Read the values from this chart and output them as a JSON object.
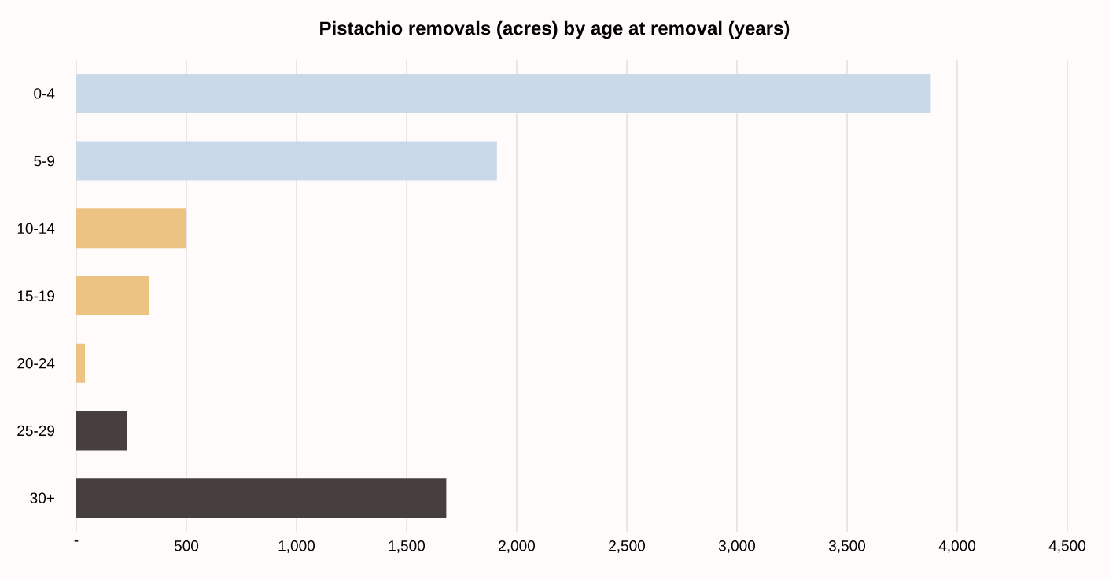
{
  "chart_data": {
    "type": "bar",
    "orientation": "horizontal",
    "title": "Pistachio removals (acres) by age at removal (years)",
    "categories": [
      "0-4",
      "5-9",
      "10-14",
      "15-19",
      "20-24",
      "25-29",
      "30+"
    ],
    "values": [
      3880,
      1910,
      500,
      330,
      40,
      230,
      1680
    ],
    "colors": [
      "#c9d9e8",
      "#c9d9e8",
      "#ecc382",
      "#ecc382",
      "#ecc382",
      "#473f3e",
      "#473f3e"
    ],
    "xlim": [
      0,
      4500
    ],
    "xticks": [
      {
        "value": 0,
        "label": "-"
      },
      500,
      {
        "value": 1000,
        "label": "1,000"
      },
      {
        "value": 1500,
        "label": "1,500"
      },
      {
        "value": 2000,
        "label": "2,000"
      },
      {
        "value": 2500,
        "label": "2,500"
      },
      {
        "value": 3000,
        "label": "3,000"
      },
      {
        "value": 3500,
        "label": "3,500"
      },
      {
        "value": 4000,
        "label": "4,000"
      },
      {
        "value": 4500,
        "label": "4,500"
      }
    ],
    "grid": "x"
  }
}
